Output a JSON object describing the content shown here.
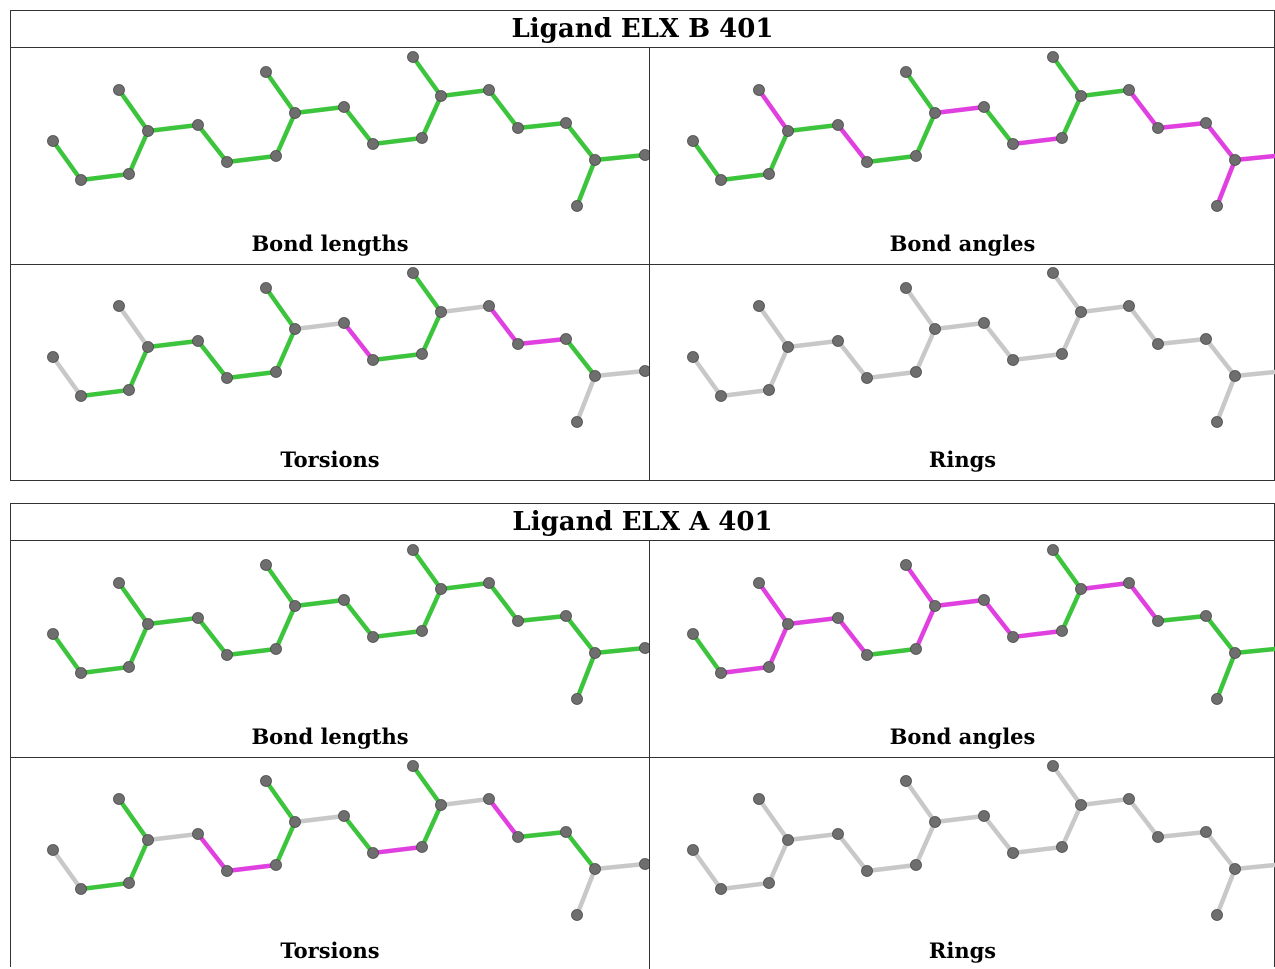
{
  "tables": [
    {
      "title": "Ligand ELX B 401",
      "panels": [
        {
          "label": "Bond lengths",
          "bond_colors": [
            "g",
            "g",
            "g",
            "g",
            "g",
            "g",
            "g",
            "g",
            "g",
            "g",
            "g",
            "g",
            "g",
            "g",
            "g",
            "g",
            "g",
            "g",
            "g"
          ]
        },
        {
          "label": "Bond angles",
          "bond_colors": [
            "g",
            "g",
            "g",
            "m",
            "g",
            "m",
            "g",
            "g",
            "g",
            "m",
            "g",
            "m",
            "g",
            "g",
            "g",
            "m",
            "m",
            "m",
            "m"
          ]
        },
        {
          "label": "Torsions",
          "bond_colors": [
            "s",
            "g",
            "g",
            "s",
            "g",
            "g",
            "g",
            "g",
            "g",
            "s",
            "m",
            "g",
            "g",
            "g",
            "s",
            "m",
            "m",
            "g",
            "s"
          ]
        },
        {
          "label": "Rings",
          "bond_colors": [
            "s",
            "s",
            "s",
            "s",
            "s",
            "s",
            "s",
            "s",
            "s",
            "s",
            "s",
            "s",
            "s",
            "s",
            "s",
            "s",
            "s",
            "s",
            "s"
          ]
        }
      ]
    },
    {
      "title": "Ligand ELX A 401",
      "panels": [
        {
          "label": "Bond lengths",
          "bond_colors": [
            "g",
            "g",
            "g",
            "g",
            "g",
            "g",
            "g",
            "g",
            "g",
            "g",
            "g",
            "g",
            "g",
            "g",
            "g",
            "g",
            "g",
            "g",
            "g"
          ]
        },
        {
          "label": "Bond angles",
          "bond_colors": [
            "g",
            "m",
            "m",
            "m",
            "m",
            "m",
            "g",
            "m",
            "m",
            "m",
            "m",
            "m",
            "g",
            "g",
            "m",
            "m",
            "g",
            "g",
            "g"
          ]
        },
        {
          "label": "Torsions",
          "bond_colors": [
            "s",
            "g",
            "g",
            "g",
            "s",
            "m",
            "m",
            "g",
            "g",
            "s",
            "g",
            "m",
            "g",
            "g",
            "s",
            "m",
            "g",
            "g",
            "s"
          ]
        },
        {
          "label": "Rings",
          "bond_colors": [
            "s",
            "s",
            "s",
            "s",
            "s",
            "s",
            "s",
            "s",
            "s",
            "s",
            "s",
            "s",
            "s",
            "s",
            "s",
            "s",
            "s",
            "s",
            "s"
          ]
        }
      ]
    }
  ],
  "colors": {
    "g": "#3cc43c",
    "m": "#e040e0",
    "s": "#c8c8c8",
    "atom": "#6e6e6e",
    "grid": "#333333"
  }
}
